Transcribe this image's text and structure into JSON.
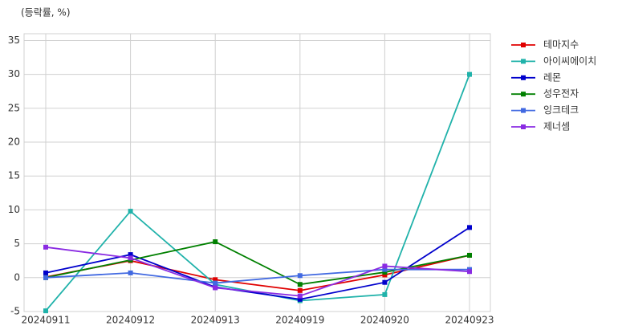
{
  "chart_data": {
    "type": "line",
    "ylabel": "(등락률, %)",
    "categories": [
      "20240911",
      "20240912",
      "20240913",
      "20240919",
      "20240920",
      "20240923"
    ],
    "series": [
      {
        "name": "테마지수",
        "color": "#e00000",
        "values": [
          0.1,
          2.5,
          -0.3,
          -1.9,
          0.4,
          3.3
        ]
      },
      {
        "name": "아이씨에이치",
        "color": "#20b2aa",
        "values": [
          -4.9,
          9.8,
          -1.0,
          -3.4,
          -2.5,
          30.0
        ]
      },
      {
        "name": "레몬",
        "color": "#0000cc",
        "values": [
          0.7,
          3.4,
          -1.4,
          -3.2,
          -0.7,
          7.4
        ]
      },
      {
        "name": "성우전자",
        "color": "#008000",
        "values": [
          0.0,
          2.6,
          5.3,
          -1.0,
          0.8,
          3.3
        ]
      },
      {
        "name": "잉크테크",
        "color": "#4169e1",
        "values": [
          0.0,
          0.7,
          -0.8,
          0.3,
          1.2,
          1.2
        ]
      },
      {
        "name": "제너셈",
        "color": "#8a2be2",
        "values": [
          4.5,
          2.9,
          -1.5,
          -2.7,
          1.7,
          0.9
        ]
      }
    ],
    "ylim": [
      -5,
      36
    ],
    "yticks": [
      -5,
      0,
      5,
      10,
      15,
      20,
      25,
      30,
      35
    ],
    "grid": true,
    "legend": "right"
  }
}
